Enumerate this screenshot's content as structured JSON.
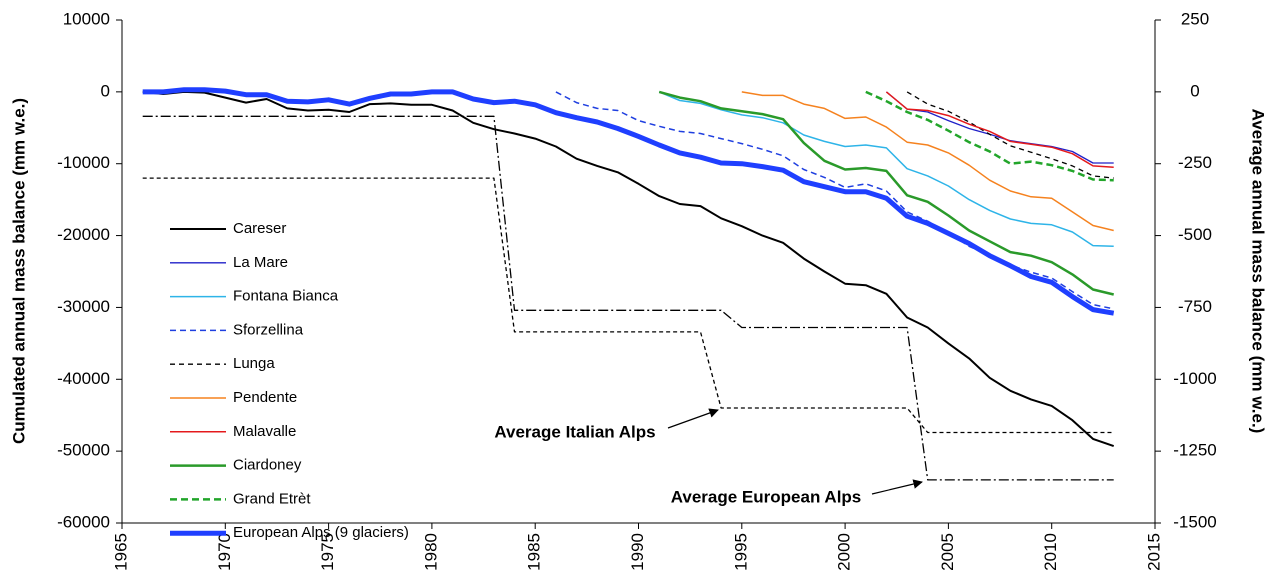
{
  "chart_data": {
    "type": "line",
    "y_label": "Cumulated annual mass balance (mm w.e.)",
    "y2_label": "Average annual mass balance (mm w.e.)",
    "xlim": [
      1965,
      2015
    ],
    "xticks": [
      1965,
      1970,
      1975,
      1980,
      1985,
      1990,
      1995,
      2000,
      2005,
      2010,
      2015
    ],
    "ylim": [
      -60000,
      10000
    ],
    "yticks": [
      -60000,
      -50000,
      -40000,
      -30000,
      -20000,
      -10000,
      0,
      10000
    ],
    "y2lim": [
      -1500,
      250
    ],
    "y2ticks": [
      -1500,
      -1250,
      -1000,
      -750,
      -500,
      -250,
      0,
      250
    ],
    "legend": "left",
    "x": [
      1966,
      1967,
      1968,
      1969,
      1970,
      1971,
      1972,
      1973,
      1974,
      1975,
      1976,
      1977,
      1978,
      1979,
      1980,
      1981,
      1982,
      1983,
      1984,
      1985,
      1986,
      1987,
      1988,
      1989,
      1990,
      1991,
      1992,
      1993,
      1994,
      1995,
      1996,
      1997,
      1998,
      1999,
      2000,
      2001,
      2002,
      2003,
      2004,
      2005,
      2006,
      2007,
      2008,
      2009,
      2010,
      2011,
      2012,
      2013
    ],
    "series": [
      {
        "name": "Careser",
        "color": "#000000",
        "width": 2,
        "dash": "",
        "values": [
          0,
          -300,
          0,
          -100,
          -800,
          -1500,
          -1000,
          -2300,
          -2600,
          -2500,
          -2800,
          -1700,
          -1600,
          -1800,
          -1800,
          -2600,
          -4300,
          -5200,
          -5800,
          -6500,
          -7600,
          -9300,
          -10300,
          -11200,
          -12800,
          -14500,
          -15600,
          -15900,
          -17600,
          -18700,
          -20000,
          -21000,
          -23200,
          -25000,
          -26700,
          -26900,
          -28100,
          -31400,
          -32800,
          -35000,
          -37100,
          -39800,
          -41600,
          -42800,
          -43700,
          -45700,
          -48300,
          -49300
        ]
      },
      {
        "name": "La Mare",
        "color": "#2020c8",
        "width": 1.3,
        "dash": "",
        "values": [
          null,
          null,
          null,
          null,
          null,
          null,
          null,
          null,
          null,
          null,
          null,
          null,
          null,
          null,
          null,
          null,
          null,
          null,
          null,
          null,
          null,
          null,
          null,
          null,
          null,
          null,
          null,
          null,
          null,
          null,
          null,
          null,
          null,
          null,
          null,
          null,
          0,
          -2400,
          -2800,
          -4000,
          -5100,
          -5900,
          -6800,
          -7200,
          -7600,
          -8300,
          -9900,
          -9900
        ]
      },
      {
        "name": "Fontana Bianca",
        "color": "#2eb4e8",
        "width": 1.5,
        "dash": "",
        "values": [
          null,
          null,
          null,
          null,
          null,
          null,
          null,
          null,
          null,
          null,
          null,
          null,
          null,
          null,
          null,
          null,
          null,
          null,
          null,
          null,
          null,
          null,
          null,
          null,
          null,
          0,
          -1200,
          -1600,
          -2500,
          -3200,
          -3600,
          -4300,
          -6000,
          -6900,
          -7600,
          -7400,
          -7800,
          -10700,
          -11700,
          -13100,
          -15000,
          -16500,
          -17700,
          -18300,
          -18500,
          -19500,
          -21400,
          -21500
        ]
      },
      {
        "name": "Sforzellina",
        "color": "#1f3fe0",
        "width": 1.5,
        "dash": "6 4",
        "values": [
          null,
          null,
          null,
          null,
          null,
          null,
          null,
          null,
          null,
          null,
          null,
          null,
          null,
          null,
          null,
          null,
          null,
          null,
          null,
          null,
          0,
          -1500,
          -2300,
          -2600,
          -4000,
          -4800,
          -5500,
          -5800,
          -6500,
          -7200,
          -8000,
          -8900,
          -10800,
          -11900,
          -13300,
          -12800,
          -13800,
          -16700,
          -18000,
          -19600,
          -21500,
          -22800,
          -24100,
          -25100,
          -25900,
          -27800,
          -29600,
          -30200
        ]
      },
      {
        "name": "Lunga",
        "color": "#000000",
        "width": 1.3,
        "dash": "5 4",
        "values": [
          null,
          null,
          null,
          null,
          null,
          null,
          null,
          null,
          null,
          null,
          null,
          null,
          null,
          null,
          null,
          null,
          null,
          null,
          null,
          null,
          null,
          null,
          null,
          null,
          null,
          null,
          null,
          null,
          null,
          null,
          null,
          null,
          null,
          null,
          null,
          null,
          null,
          0,
          -1700,
          -2700,
          -4200,
          -5900,
          -7500,
          -8400,
          -9300,
          -10300,
          -11700,
          -12000
        ]
      },
      {
        "name": "Pendente",
        "color": "#f5821f",
        "width": 1.5,
        "dash": "",
        "values": [
          null,
          null,
          null,
          null,
          null,
          null,
          null,
          null,
          null,
          null,
          null,
          null,
          null,
          null,
          null,
          null,
          null,
          null,
          null,
          null,
          null,
          null,
          null,
          null,
          null,
          null,
          null,
          null,
          null,
          0,
          -500,
          -500,
          -1700,
          -2300,
          -3700,
          -3500,
          -4900,
          -7000,
          -7400,
          -8500,
          -10200,
          -12300,
          -13800,
          -14600,
          -14800,
          -16700,
          -18600,
          -19300
        ]
      },
      {
        "name": "Malavalle",
        "color": "#e41a1c",
        "width": 1.5,
        "dash": "",
        "values": [
          null,
          null,
          null,
          null,
          null,
          null,
          null,
          null,
          null,
          null,
          null,
          null,
          null,
          null,
          null,
          null,
          null,
          null,
          null,
          null,
          null,
          null,
          null,
          null,
          null,
          null,
          null,
          null,
          null,
          null,
          null,
          null,
          null,
          null,
          null,
          null,
          0,
          -2400,
          -2600,
          -3300,
          -4500,
          -5500,
          -6900,
          -7300,
          -7700,
          -8600,
          -10300,
          -10500
        ]
      },
      {
        "name": "Ciardoney",
        "color": "#2a9a2a",
        "width": 2.5,
        "dash": "",
        "values": [
          null,
          null,
          null,
          null,
          null,
          null,
          null,
          null,
          null,
          null,
          null,
          null,
          null,
          null,
          null,
          null,
          null,
          null,
          null,
          null,
          null,
          null,
          null,
          null,
          null,
          0,
          -800,
          -1300,
          -2300,
          -2700,
          -3100,
          -3800,
          -7100,
          -9600,
          -10800,
          -10600,
          -11000,
          -14400,
          -15300,
          -17200,
          -19300,
          -20800,
          -22300,
          -22800,
          -23700,
          -25400,
          -27500,
          -28200
        ]
      },
      {
        "name": "Grand Etrèt",
        "color": "#22a52a",
        "width": 2.5,
        "dash": "7 4",
        "values": [
          null,
          null,
          null,
          null,
          null,
          null,
          null,
          null,
          null,
          null,
          null,
          null,
          null,
          null,
          null,
          null,
          null,
          null,
          null,
          null,
          null,
          null,
          null,
          null,
          null,
          null,
          null,
          null,
          null,
          null,
          null,
          null,
          null,
          null,
          null,
          0,
          -1300,
          -2800,
          -3900,
          -5400,
          -7000,
          -8300,
          -10000,
          -9700,
          -10200,
          -11000,
          -12200,
          -12300
        ]
      },
      {
        "name": "European Alps (9 glaciers)",
        "color": "#1f3fff",
        "width": 5,
        "dash": "",
        "values": [
          0,
          0,
          300,
          300,
          100,
          -400,
          -400,
          -1300,
          -1400,
          -1100,
          -1700,
          -900,
          -300,
          -300,
          0,
          0,
          -1000,
          -1500,
          -1300,
          -1800,
          -2900,
          -3600,
          -4200,
          -5100,
          -6200,
          -7400,
          -8500,
          -9100,
          -9900,
          -10000,
          -10400,
          -10900,
          -12500,
          -13200,
          -13900,
          -13900,
          -14800,
          -17300,
          -18300,
          -19700,
          -21100,
          -22800,
          -24200,
          -25700,
          -26500,
          -28500,
          -30300,
          -30800
        ]
      }
    ],
    "reference_lines": [
      {
        "label": "Average Italian Alps",
        "axis": "y2",
        "color": "#000000",
        "dash": "4 3",
        "values": [
          -300,
          -300,
          -300,
          -300,
          -300,
          -300,
          -300,
          -300,
          -300,
          -300,
          -300,
          -300,
          -300,
          -300,
          -300,
          -300,
          -300,
          -300,
          -835,
          -835,
          -835,
          -835,
          -835,
          -835,
          -835,
          -835,
          -835,
          -835,
          -1100,
          -1100,
          -1100,
          -1100,
          -1100,
          -1100,
          -1100,
          -1100,
          -1100,
          -1100,
          -1185,
          -1185,
          -1185,
          -1185,
          -1185,
          -1185,
          -1185,
          -1185,
          -1185,
          -1185
        ]
      },
      {
        "label": "Average European Alps",
        "axis": "y2",
        "color": "#000000",
        "dash": "10 3 2 3",
        "values": [
          -85,
          -85,
          -85,
          -85,
          -85,
          -85,
          -85,
          -85,
          -85,
          -85,
          -85,
          -85,
          -85,
          -85,
          -85,
          -85,
          -85,
          -85,
          -760,
          -760,
          -760,
          -760,
          -760,
          -760,
          -760,
          -760,
          -760,
          -760,
          -760,
          -820,
          -820,
          -820,
          -820,
          -820,
          -820,
          -820,
          -820,
          -820,
          -1350,
          -1350,
          -1350,
          -1350,
          -1350,
          -1350,
          -1350,
          -1350,
          -1350,
          -1350
        ]
      }
    ]
  }
}
